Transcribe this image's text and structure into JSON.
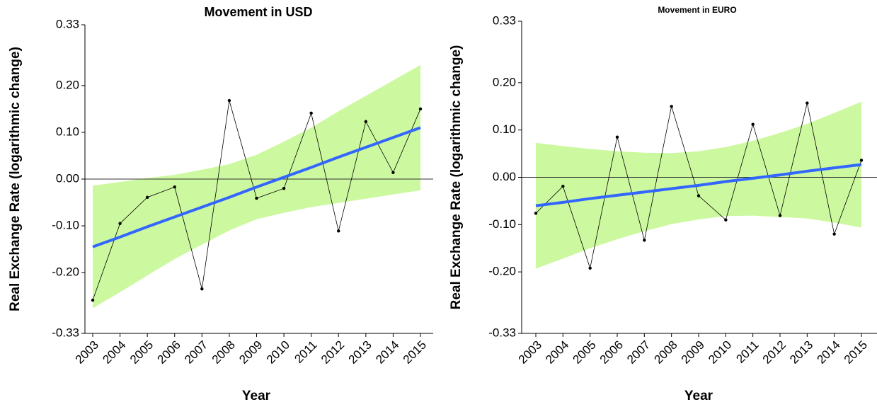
{
  "chart_data": [
    {
      "type": "line",
      "title": "Movement in USD",
      "x_label": "Year",
      "y_label": "Real Exchange Rate (logarithmic change)",
      "categories": [
        "2003",
        "2004",
        "2005",
        "2006",
        "2007",
        "2008",
        "2009",
        "2010",
        "2011",
        "2012",
        "2013",
        "2014",
        "2015"
      ],
      "values": [
        -0.259,
        -0.095,
        -0.039,
        -0.017,
        -0.235,
        0.168,
        -0.041,
        -0.02,
        0.141,
        -0.111,
        0.123,
        0.014,
        0.15
      ],
      "fit": [
        -0.145,
        -0.124,
        -0.102,
        -0.081,
        -0.06,
        -0.039,
        -0.017,
        0.004,
        0.025,
        0.047,
        0.068,
        0.089,
        0.11
      ],
      "band_upper": [
        -0.014,
        -0.006,
        0.002,
        0.009,
        0.02,
        0.032,
        0.052,
        0.08,
        0.11,
        0.145,
        0.178,
        0.211,
        0.244
      ],
      "band_lower": [
        -0.276,
        -0.242,
        -0.206,
        -0.171,
        -0.14,
        -0.11,
        -0.086,
        -0.072,
        -0.06,
        -0.051,
        -0.042,
        -0.033,
        -0.024
      ],
      "color": "#000000",
      "fit_color": "#3366ff",
      "band_color": "#ccf99f",
      "hline": 0,
      "ylim": [
        -0.33,
        0.33
      ],
      "yticks": [
        -0.33,
        {
          "value": -0.2,
          "label": "-0.20"
        },
        {
          "value": -0.1,
          "label": "-0.10"
        },
        {
          "value": 0,
          "label": "0.00"
        },
        {
          "value": 0.1,
          "label": "0.10"
        },
        {
          "value": 0.2,
          "label": "0.20"
        },
        0.33
      ]
    },
    {
      "type": "line",
      "title": "Movement in EURO",
      "x_label": "Year",
      "y_label": "Real Exchange Rate (logarithmic change)",
      "categories": [
        "2003",
        "2004",
        "2005",
        "2006",
        "2007",
        "2008",
        "2009",
        "2010",
        "2011",
        "2012",
        "2013",
        "2014",
        "2015"
      ],
      "values": [
        -0.076,
        -0.019,
        -0.192,
        0.085,
        -0.133,
        0.15,
        -0.039,
        -0.09,
        0.112,
        -0.081,
        0.157,
        -0.12,
        0.036
      ],
      "fit": [
        -0.06,
        -0.053,
        -0.045,
        -0.038,
        -0.031,
        -0.024,
        -0.017,
        -0.009,
        -0.002,
        0.005,
        0.013,
        0.02,
        0.027
      ],
      "band_upper": [
        0.073,
        0.066,
        0.06,
        0.055,
        0.052,
        0.051,
        0.055,
        0.064,
        0.077,
        0.094,
        0.113,
        0.136,
        0.16
      ],
      "band_lower": [
        -0.193,
        -0.172,
        -0.15,
        -0.131,
        -0.114,
        -0.099,
        -0.089,
        -0.082,
        -0.081,
        -0.084,
        -0.087,
        -0.096,
        -0.106
      ],
      "color": "#000000",
      "fit_color": "#3366ff",
      "band_color": "#ccf99f",
      "hline": 0,
      "ylim": [
        -0.33,
        0.33
      ],
      "yticks": [
        -0.33,
        {
          "value": -0.2,
          "label": "-0.20"
        },
        {
          "value": -0.1,
          "label": "-0.10"
        },
        {
          "value": 0,
          "label": "0.00"
        },
        {
          "value": 0.1,
          "label": "0.10"
        },
        {
          "value": 0.2,
          "label": "0.20"
        },
        0.33
      ]
    }
  ]
}
